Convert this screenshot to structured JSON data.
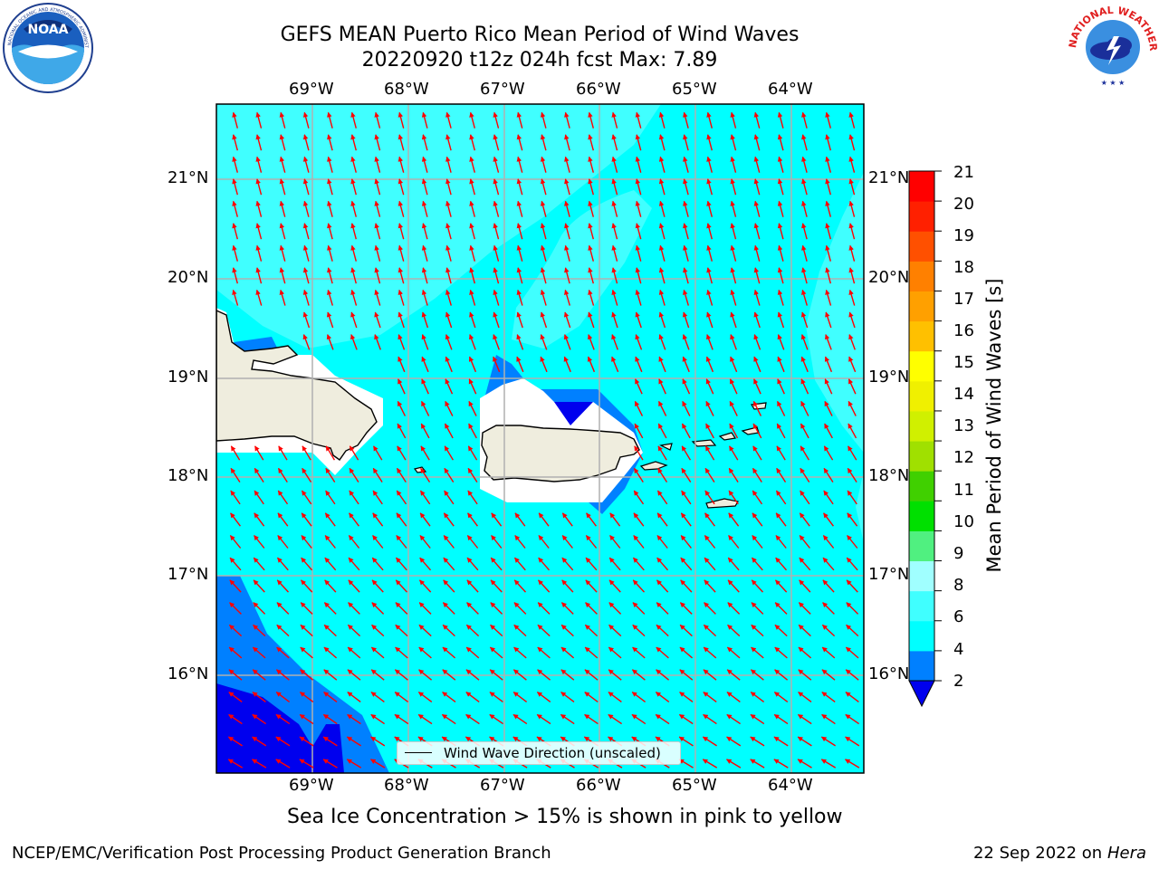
{
  "header": {
    "title_line1": "GEFS MEAN Puerto Rico Mean Period of Wind Waves",
    "title_line2": "20220920 t12z 024h fcst   Max: 7.89"
  },
  "logos": {
    "left": {
      "name": "NOAA",
      "ring_text": "NATIONAL OCEANIC AND ATMOSPHERIC ADMINISTRATION · U.S. DEPARTMENT OF COMMERCE"
    },
    "right": {
      "name": "NATIONAL WEATHER SERVICE"
    }
  },
  "map": {
    "lon_labels": [
      "69°W",
      "68°W",
      "67°W",
      "66°W",
      "65°W",
      "64°W"
    ],
    "lat_labels": [
      "21°N",
      "20°N",
      "19°N",
      "18°N",
      "17°N",
      "16°N"
    ],
    "legend_label": "Wind Wave Direction (unscaled)",
    "arrow_color": "#ff0000",
    "land_color": "#efedde"
  },
  "colorbar": {
    "title": "Mean Period of Wind Waves [s]",
    "ticks": [
      "21",
      "20",
      "19",
      "18",
      "17",
      "16",
      "15",
      "14",
      "13",
      "12",
      "11",
      "10",
      "9",
      "8",
      "6",
      "4",
      "2"
    ],
    "colors": [
      "#0000ee",
      "#0080ff",
      "#00ffff",
      "#40ffff",
      "#a0ffff",
      "#50f080",
      "#00e000",
      "#40d000",
      "#a0e000",
      "#d0f000",
      "#f0f000",
      "#ffff00",
      "#ffc000",
      "#ffa000",
      "#ff8000",
      "#ff5000",
      "#ff2000",
      "#ff0000"
    ]
  },
  "caption": "Sea Ice Concentration > 15% is shown in pink to yellow",
  "footer": {
    "left": "NCEP/EMC/Verification Post Processing Product Generation Branch",
    "date": "22 Sep 2022 on",
    "machine": "Hera"
  }
}
